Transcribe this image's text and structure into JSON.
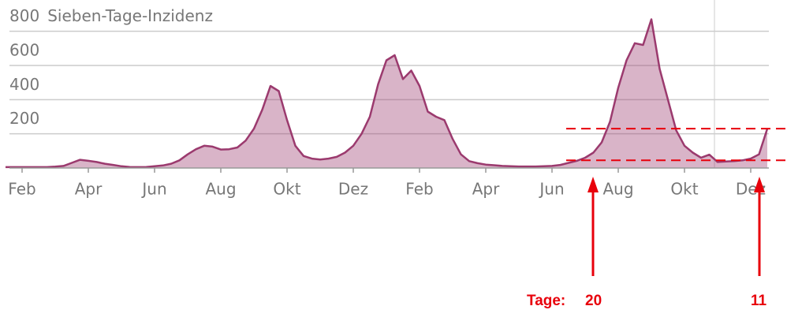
{
  "chart_data": {
    "type": "area",
    "title": "Sieben-Tage-Inzidenz",
    "categories": [
      null,
      null,
      "Feb",
      null,
      null,
      null,
      null,
      null,
      null,
      null,
      "Apr",
      null,
      null,
      null,
      null,
      null,
      null,
      null,
      "Jun",
      null,
      null,
      null,
      null,
      null,
      null,
      null,
      "Aug",
      null,
      null,
      null,
      null,
      null,
      null,
      null,
      "Okt",
      null,
      null,
      null,
      null,
      null,
      null,
      null,
      "Dez",
      null,
      null,
      null,
      null,
      null,
      null,
      null,
      "Feb",
      null,
      null,
      null,
      null,
      null,
      null,
      null,
      "Apr",
      null,
      null,
      null,
      null,
      null,
      null,
      null,
      "Jun",
      null,
      null,
      null,
      null,
      null,
      null,
      null,
      "Aug",
      null,
      null,
      null,
      null,
      null,
      null,
      null,
      "Okt",
      null,
      null,
      null,
      null,
      null,
      null,
      null,
      "Dez",
      null,
      null
    ],
    "series": [
      {
        "color": "#9b3a6e",
        "values": [
          5,
          5,
          5,
          5,
          5,
          5,
          8,
          12,
          30,
          48,
          42,
          35,
          25,
          18,
          10,
          6,
          5,
          6,
          10,
          15,
          25,
          45,
          80,
          110,
          130,
          125,
          108,
          110,
          120,
          160,
          230,
          340,
          480,
          450,
          280,
          130,
          70,
          55,
          50,
          55,
          65,
          90,
          130,
          200,
          300,
          490,
          630,
          660,
          520,
          570,
          480,
          330,
          300,
          280,
          170,
          80,
          40,
          28,
          20,
          16,
          12,
          10,
          9,
          9,
          9,
          10,
          12,
          18,
          30,
          42,
          60,
          90,
          150,
          270,
          470,
          630,
          730,
          720,
          870,
          580,
          400,
          220,
          130,
          90,
          60,
          78,
          35,
          38,
          40,
          45,
          55,
          80,
          230
        ]
      }
    ],
    "ylim": [
      0,
      900
    ],
    "yticks": [
      200,
      400,
      600,
      800
    ],
    "grid": true,
    "reference_lines": [
      230,
      45
    ],
    "annotations": [
      "Tage:",
      "20",
      "11"
    ]
  }
}
